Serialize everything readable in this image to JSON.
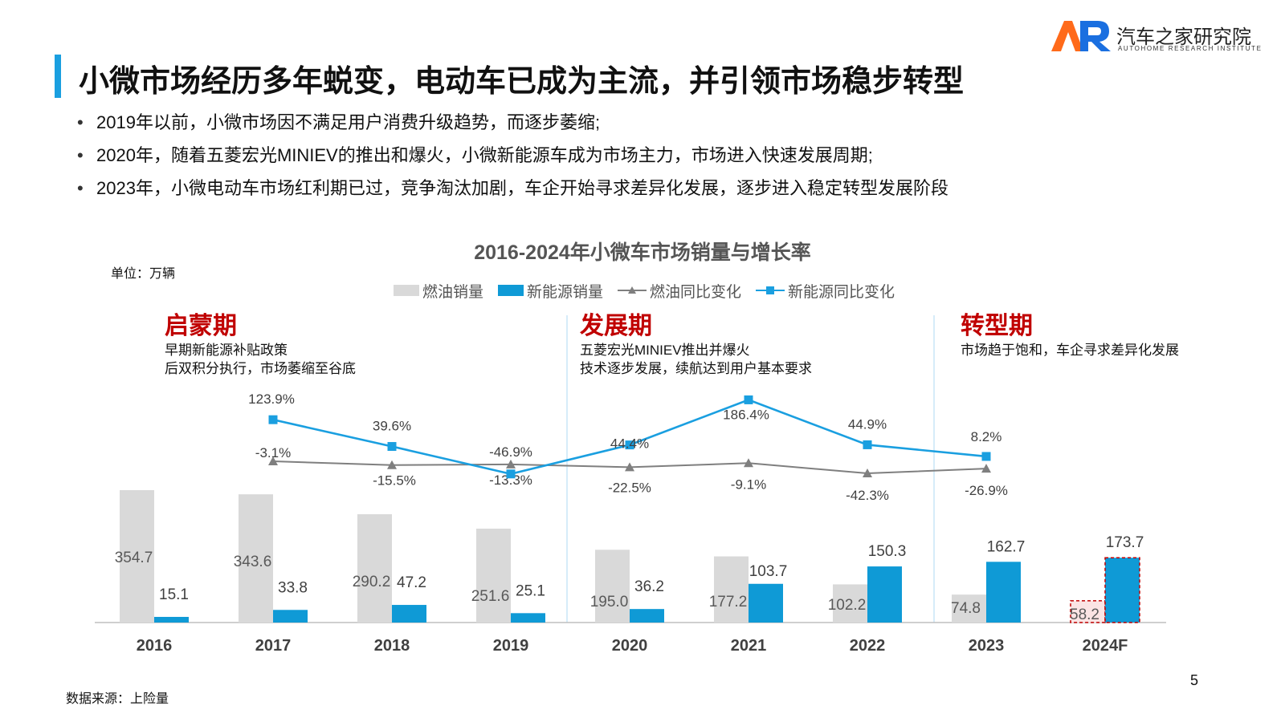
{
  "header": {
    "title": "小微市场经历多年蜕变，电动车已成为主流，并引领市场稳步转型",
    "logo_cn": "汽车之家研究院",
    "logo_en": "AUTOHOME RESEARCH INSTITUTE",
    "logo_mark": "AR"
  },
  "bullets": [
    "2019年以前，小微市场因不满足用户消费升级趋势，而逐步萎缩;",
    "2020年，随着五菱宏光MINIEV的推出和爆火，小微新能源车成为市场主力，市场进入快速发展周期;",
    "2023年，小微电动车市场红利期已过，竞争淘汰加剧，车企开始寻求差异化发展，逐步进入稳定转型发展阶段"
  ],
  "unit_label": "单位：万辆",
  "phases": [
    {
      "name": "启蒙期",
      "lines": [
        "早期新能源补贴政策",
        "后双积分执行，市场萎缩至谷底"
      ]
    },
    {
      "name": "发展期",
      "lines": [
        "五菱宏光MINIEV推出并爆火",
        "技术逐步发展，续航达到用户基本要求"
      ]
    },
    {
      "name": "转型期",
      "lines": [
        "市场趋于饱和，车企寻求差异化发展"
      ]
    }
  ],
  "colors": {
    "accent": "#1a9fe0",
    "gas_bar": "#d9d9d9",
    "ev_bar": "#0f9ad6",
    "gas_line": "#7f7f7f",
    "ev_line": "#1a9fe0",
    "forecast_outline": "#c00000",
    "phase_red": "#c00000"
  },
  "chart_data": {
    "type": "bar",
    "title": "2016-2024年小微车市场销量与增长率",
    "unit": "万辆",
    "categories": [
      "2016",
      "2017",
      "2018",
      "2019",
      "2020",
      "2021",
      "2022",
      "2023",
      "2024F"
    ],
    "series": [
      {
        "name": "燃油销量",
        "kind": "bar",
        "color": "#d9d9d9",
        "values": [
          354.7,
          343.6,
          290.2,
          251.6,
          195.0,
          177.2,
          102.2,
          74.8,
          58.2
        ],
        "labels": [
          "354.7",
          "343.6",
          "290.2",
          "251.6",
          "195.0",
          "177.2",
          "102.2",
          "74.8",
          "58.2"
        ]
      },
      {
        "name": "新能源销量",
        "kind": "bar",
        "color": "#0f9ad6",
        "values": [
          15.1,
          33.8,
          47.2,
          25.1,
          36.2,
          103.7,
          150.3,
          162.7,
          173.7
        ],
        "labels": [
          "15.1",
          "33.8",
          "47.2",
          "25.1",
          "36.2",
          "103.7",
          "150.3",
          "162.7",
          "173.7"
        ]
      },
      {
        "name": "燃油同比变化",
        "kind": "line",
        "color": "#7f7f7f",
        "marker": "triangle",
        "values": [
          null,
          -3.1,
          -15.5,
          -13.3,
          -22.5,
          -9.1,
          -42.3,
          -26.9,
          null
        ],
        "labels": [
          null,
          "-3.1%",
          "-15.5%",
          "-13.3%",
          "-22.5%",
          "-9.1%",
          "-42.3%",
          "-26.9%",
          null
        ]
      },
      {
        "name": "新能源同比变化",
        "kind": "line",
        "color": "#1a9fe0",
        "marker": "square",
        "values": [
          null,
          123.9,
          39.6,
          -46.9,
          44.4,
          186.4,
          44.9,
          8.2,
          null
        ],
        "labels": [
          null,
          "123.9%",
          "39.6%",
          "-46.9%",
          "44.4%",
          "186.4%",
          "44.9%",
          "8.2%",
          null
        ]
      }
    ],
    "forecast_category": "2024F",
    "phase_dividers_after": [
      "2019",
      "2023"
    ],
    "ylim_bars": [
      0,
      700
    ],
    "ylim_rate": [
      -150,
      250
    ]
  },
  "footer": {
    "source": "数据来源：上险量",
    "page_number": "5"
  }
}
